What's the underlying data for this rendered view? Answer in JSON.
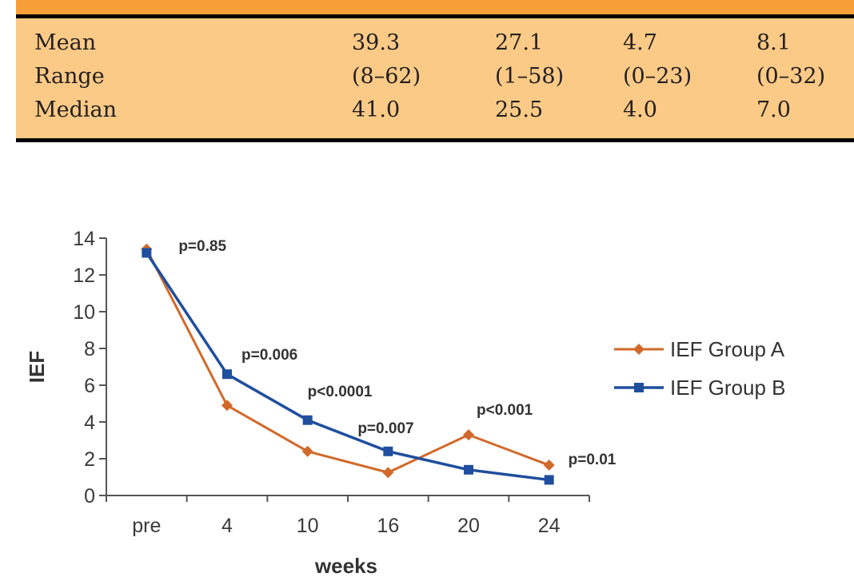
{
  "table": {
    "rows": [
      {
        "label": "Mean",
        "values": [
          "39.3",
          "27.1",
          "4.7",
          "8.1"
        ]
      },
      {
        "label": "Range",
        "values": [
          "(8–62)",
          "(1–58)",
          "(0–23)",
          "(0–32)"
        ]
      },
      {
        "label": "Median",
        "values": [
          "41.0",
          "25.5",
          "4.0",
          "7.0"
        ]
      }
    ],
    "colors": {
      "header_band": "#F79E38",
      "body": "#FBCA86",
      "rule": "#000000"
    }
  },
  "chart_data": {
    "type": "line",
    "title": "",
    "xlabel": "weeks",
    "ylabel": "IEF",
    "categories": [
      "pre",
      "4",
      "10",
      "16",
      "20",
      "24"
    ],
    "ylim": [
      0,
      14
    ],
    "yticks": [
      "0",
      "2",
      "4",
      "6",
      "8",
      "10",
      "12",
      "14"
    ],
    "grid": false,
    "legend_position": "right",
    "series": [
      {
        "name": "IEF Group A",
        "color": "#D2692A",
        "marker": "diamond",
        "values": [
          13.4,
          4.9,
          2.4,
          1.25,
          3.3,
          1.65
        ]
      },
      {
        "name": "IEF Group B",
        "color": "#1F4E9E",
        "marker": "square",
        "values": [
          13.2,
          6.6,
          4.1,
          2.4,
          1.4,
          0.85
        ]
      }
    ],
    "annotations": [
      {
        "text": "p=0.85",
        "category": "pre",
        "y": 13.6
      },
      {
        "text": "p=0.006",
        "category": "4",
        "y": 7.7
      },
      {
        "text": "p<0.0001",
        "category": "10",
        "y": 5.7
      },
      {
        "text": "p=0.007",
        "category": "16",
        "y": 3.7
      },
      {
        "text": "p<0.001",
        "category": "20",
        "y": 4.7
      },
      {
        "text": "p=0.01",
        "category": "24",
        "y": 2.0
      }
    ]
  }
}
